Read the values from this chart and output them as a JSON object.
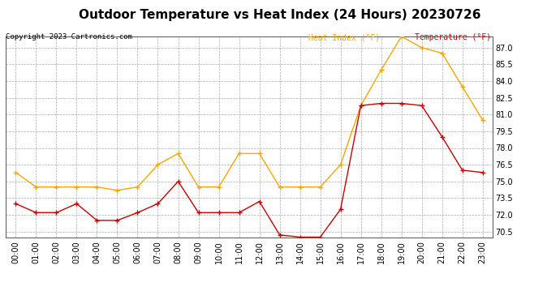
{
  "title": "Outdoor Temperature vs Heat Index (24 Hours) 20230726",
  "copyright": "Copyright 2023 Cartronics.com",
  "legend_heat": "Heat Index (°F)",
  "legend_temp": "Temperature (°F)",
  "hours": [
    "00:00",
    "01:00",
    "02:00",
    "03:00",
    "04:00",
    "05:00",
    "06:00",
    "07:00",
    "08:00",
    "09:00",
    "10:00",
    "11:00",
    "12:00",
    "13:00",
    "14:00",
    "15:00",
    "16:00",
    "17:00",
    "18:00",
    "19:00",
    "20:00",
    "21:00",
    "22:00",
    "23:00"
  ],
  "heat_index": [
    75.8,
    74.5,
    74.5,
    74.5,
    74.5,
    74.2,
    74.5,
    76.5,
    77.5,
    74.5,
    74.5,
    77.5,
    77.5,
    74.5,
    74.5,
    74.5,
    76.5,
    81.8,
    85.0,
    88.0,
    87.0,
    86.5,
    83.5,
    80.5
  ],
  "temperature": [
    73.0,
    72.2,
    72.2,
    73.0,
    71.5,
    71.5,
    72.2,
    73.0,
    75.0,
    72.2,
    72.2,
    72.2,
    73.2,
    70.2,
    70.0,
    70.0,
    72.5,
    81.8,
    82.0,
    82.0,
    81.8,
    79.0,
    76.0,
    75.8
  ],
  "heat_color": "#FFA500",
  "temp_color": "#CC0000",
  "ylim_min": 70.0,
  "ylim_max": 88.0,
  "bg_color": "#ffffff",
  "grid_color": "#aaaaaa",
  "title_fontsize": 11,
  "label_fontsize": 7,
  "copyright_fontsize": 6.5,
  "legend_fontsize": 7
}
